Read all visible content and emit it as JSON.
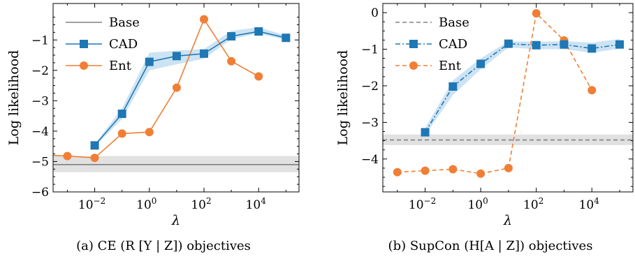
{
  "chart_data": [
    {
      "type": "line",
      "caption": "(a) CE (R [Y | Z]) objectives",
      "xlabel": "λ",
      "ylabel": "Log likelihood",
      "xscale": "log",
      "xlim": [
        0.0003,
        300000
      ],
      "ylim": [
        -6,
        0.2
      ],
      "xticks": [
        0.01,
        1,
        100,
        10000
      ],
      "xtick_labels": [
        [
          "10",
          "−2"
        ],
        [
          "10",
          "0"
        ],
        [
          "10",
          "2"
        ],
        [
          "10",
          "4"
        ]
      ],
      "yticks": [
        -6,
        -5,
        -4,
        -3,
        -2,
        -1
      ],
      "ytick_labels": [
        "−6",
        "−5",
        "−4",
        "−3",
        "−2",
        "−1"
      ],
      "grid": false,
      "legend_position": "top-left",
      "series": [
        {
          "name": "Base",
          "style": "solid",
          "marker": "none",
          "color": "#808080",
          "value": -5.1,
          "band": [
            -5.35,
            -4.82
          ]
        },
        {
          "name": "CAD",
          "style": "solid",
          "marker": "square",
          "color": "#1f77b4",
          "x": [
            0.01,
            0.1,
            1,
            10,
            100,
            1000,
            10000,
            100000
          ],
          "y": [
            -4.47,
            -3.43,
            -1.72,
            -1.53,
            -1.45,
            -0.88,
            -0.72,
            -0.93
          ],
          "band_low": [
            -4.52,
            -3.6,
            -2.0,
            -1.8,
            -1.62,
            -0.98,
            -0.78,
            -1.0
          ],
          "band_high": [
            -4.42,
            -3.25,
            -1.42,
            -1.35,
            -1.3,
            -0.7,
            -0.58,
            -0.85
          ]
        },
        {
          "name": "Ent",
          "style": "solid",
          "marker": "circle",
          "color": "#f07f35",
          "x": [
            0.001,
            0.01,
            0.1,
            1,
            10,
            100,
            1000,
            10000
          ],
          "y": [
            -4.82,
            -4.88,
            -4.08,
            -4.03,
            -2.57,
            -0.32,
            -1.7,
            -2.2
          ],
          "extend_left_to": -4.8
        }
      ]
    },
    {
      "type": "line",
      "caption": "(b) SupCon (H[A | Z]) objectives",
      "xlabel": "λ",
      "ylabel": "Log likelihood",
      "xscale": "log",
      "xlim": [
        0.0003,
        300000
      ],
      "ylim": [
        -4.9,
        0.25
      ],
      "xticks": [
        0.01,
        1,
        100,
        10000
      ],
      "xtick_labels": [
        [
          "10",
          "−2"
        ],
        [
          "10",
          "0"
        ],
        [
          "10",
          "2"
        ],
        [
          "10",
          "4"
        ]
      ],
      "yticks": [
        -4,
        -3,
        -2,
        -1,
        0
      ],
      "ytick_labels": [
        "−4",
        "−3",
        "−2",
        "−1",
        "0"
      ],
      "grid": false,
      "legend_position": "top-left",
      "series": [
        {
          "name": "Base",
          "style": "dashed",
          "marker": "none",
          "color": "#808080",
          "value": -3.48,
          "band": [
            -3.62,
            -3.33
          ]
        },
        {
          "name": "CAD",
          "style": "dashdot",
          "marker": "square",
          "color": "#1f77b4",
          "x": [
            0.01,
            0.1,
            1,
            10,
            100,
            1000,
            10000,
            100000
          ],
          "y": [
            -3.27,
            -2.02,
            -1.4,
            -0.85,
            -0.89,
            -0.87,
            -0.98,
            -0.87
          ],
          "band_low": [
            -3.35,
            -2.25,
            -1.55,
            -0.95,
            -1.0,
            -1.0,
            -1.1,
            -0.98
          ],
          "band_high": [
            -3.15,
            -1.85,
            -1.25,
            -0.78,
            -0.8,
            -0.78,
            -0.82,
            -0.72
          ]
        },
        {
          "name": "Ent",
          "style": "dashed",
          "marker": "circle",
          "color": "#f07f35",
          "x": [
            0.001,
            0.01,
            0.1,
            1,
            10,
            100,
            1000,
            10000
          ],
          "y": [
            -4.36,
            -4.32,
            -4.28,
            -4.4,
            -4.25,
            -0.02,
            -0.76,
            -2.12
          ]
        }
      ]
    }
  ]
}
